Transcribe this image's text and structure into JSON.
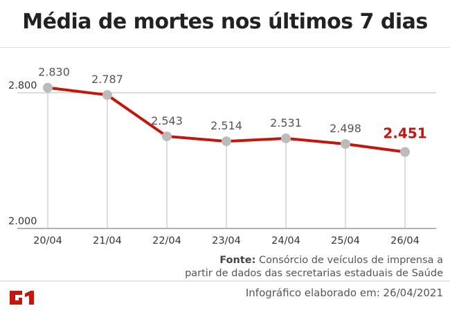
{
  "title": "Média de mortes nos últimos 7 dias",
  "chart_data": {
    "type": "line",
    "title": "Média de mortes nos últimos 7 dias",
    "categories": [
      "20/04",
      "21/04",
      "22/04",
      "23/04",
      "24/04",
      "25/04",
      "26/04"
    ],
    "values": [
      2830,
      2787,
      2543,
      2514,
      2531,
      2498,
      2451
    ],
    "value_labels": [
      "2.830",
      "2.787",
      "2.543",
      "2.514",
      "2.531",
      "2.498",
      "2.451"
    ],
    "y_ticks": [
      2000,
      2800
    ],
    "y_tick_labels": [
      "2.000",
      "2.800"
    ],
    "ylim": [
      2000,
      2800
    ],
    "line_color": "#c4170c",
    "highlight_color": "#c4170c",
    "marker_color": "#bbbbbb"
  },
  "source": {
    "label": "Fonte:",
    "text": "Consórcio de veículos de imprensa a",
    "text2": "partir de dados das secretarias estaduais de Saúde"
  },
  "credit": "Infográfico elaborado em: 26/04/2021",
  "logo": "G1"
}
